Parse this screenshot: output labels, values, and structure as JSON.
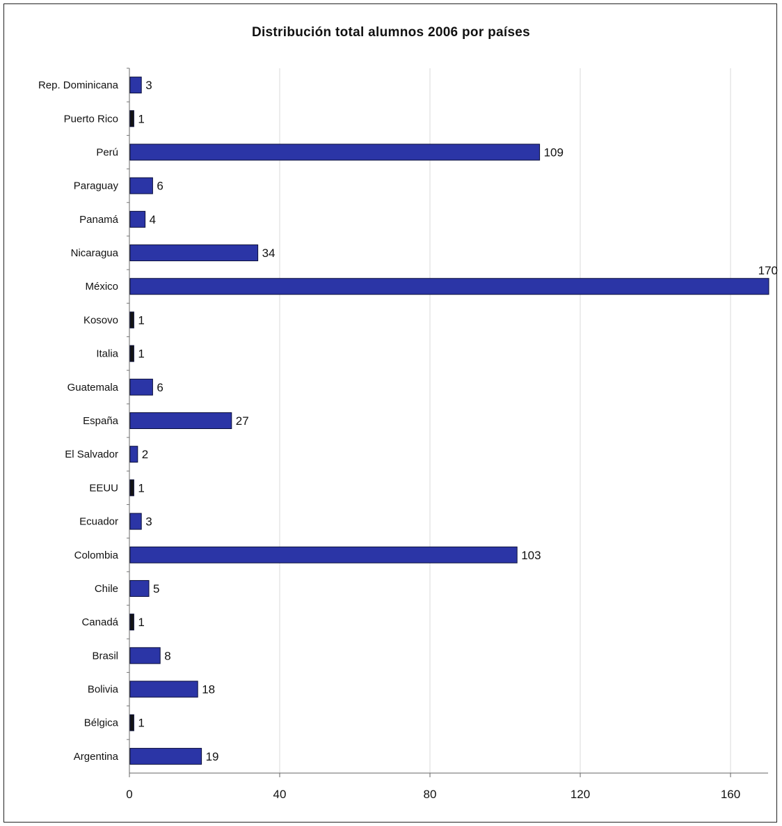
{
  "chart_data": {
    "type": "bar",
    "orientation": "horizontal",
    "title": "Distribución total alumnos 2006 por países",
    "xlabel": "",
    "ylabel": "",
    "xlim": [
      0,
      170
    ],
    "ticks": [
      "0",
      "40",
      "80",
      "120",
      "160"
    ],
    "tick_values": [
      0,
      40,
      80,
      120,
      160
    ],
    "grid": true,
    "bar_color": "#2b35a6",
    "categories": [
      "Rep. Dominicana",
      "Puerto Rico",
      "Perú",
      "Paraguay",
      "Panamá",
      "Nicaragua",
      "México",
      "Kosovo",
      "Italia",
      "Guatemala",
      "España",
      "El Salvador",
      "EEUU",
      "Ecuador",
      "Colombia",
      "Chile",
      "Canadá",
      "Brasil",
      "Bolivia",
      "Bélgica",
      "Argentina"
    ],
    "values": [
      3,
      1,
      109,
      6,
      4,
      34,
      170,
      1,
      1,
      6,
      27,
      2,
      1,
      3,
      103,
      5,
      1,
      8,
      18,
      1,
      19
    ],
    "value_labels": [
      "3",
      "1",
      "109",
      "6",
      "4",
      "34",
      "170",
      "1",
      "1",
      "6",
      "27",
      "2",
      "1",
      "3",
      "103",
      "5",
      "1",
      "8",
      "18",
      "1",
      "19"
    ]
  }
}
